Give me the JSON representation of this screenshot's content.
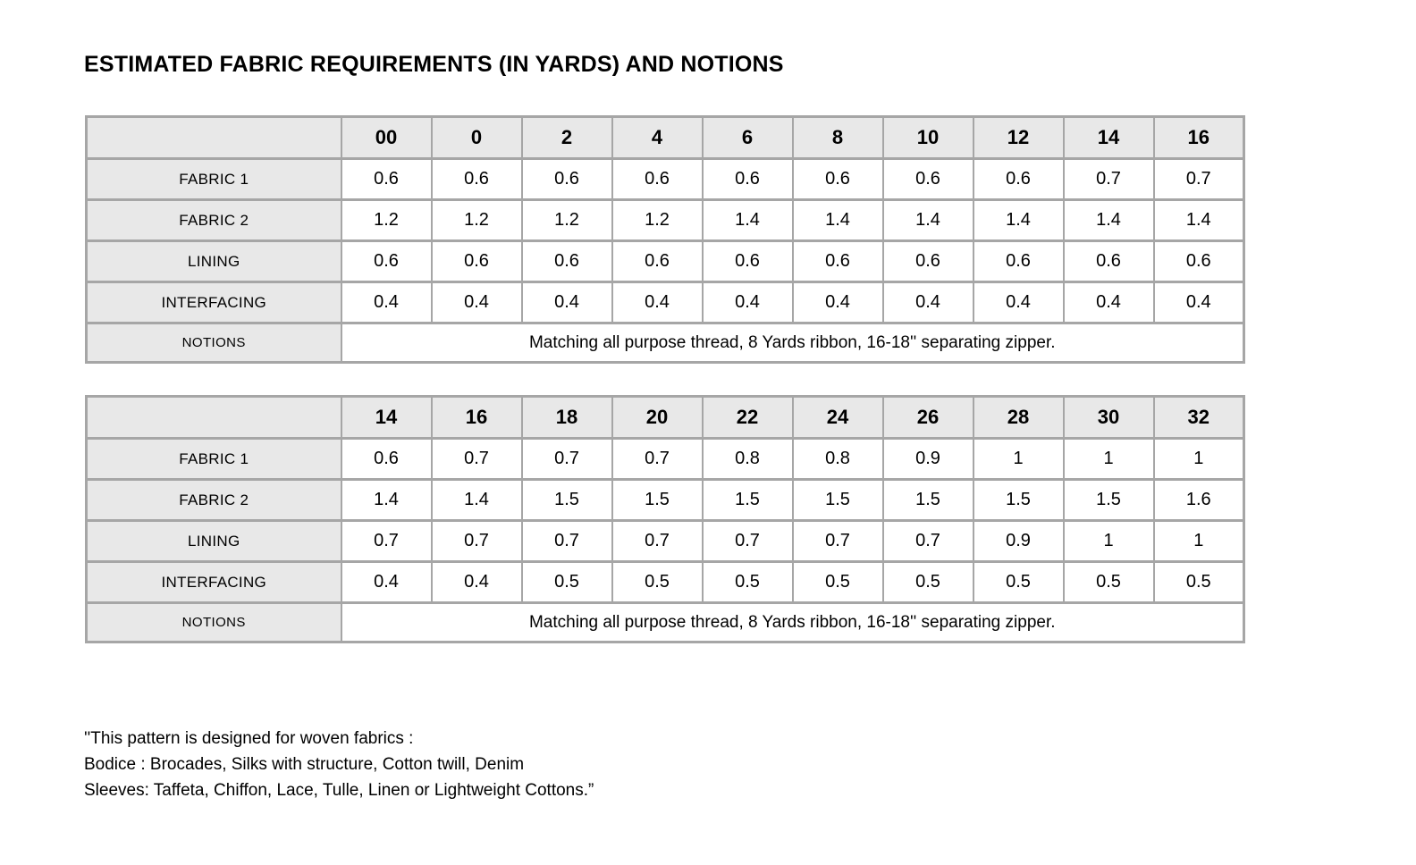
{
  "page": {
    "title": "ESTIMATED FABRIC REQUIREMENTS (IN YARDS) AND NOTIONS"
  },
  "colors": {
    "page_bg": "#ffffff",
    "shaded_cell_bg": "#e8e8e8",
    "border": "#a6a6a6",
    "text": "#000000"
  },
  "tables": [
    {
      "sizes": [
        "00",
        "0",
        "2",
        "4",
        "6",
        "8",
        "10",
        "12",
        "14",
        "16"
      ],
      "rows": [
        {
          "label": "FABRIC 1",
          "values": [
            "0.6",
            "0.6",
            "0.6",
            "0.6",
            "0.6",
            "0.6",
            "0.6",
            "0.6",
            "0.7",
            "0.7"
          ]
        },
        {
          "label": "FABRIC 2",
          "values": [
            "1.2",
            "1.2",
            "1.2",
            "1.2",
            "1.4",
            "1.4",
            "1.4",
            "1.4",
            "1.4",
            "1.4"
          ]
        },
        {
          "label": "LINING",
          "values": [
            "0.6",
            "0.6",
            "0.6",
            "0.6",
            "0.6",
            "0.6",
            "0.6",
            "0.6",
            "0.6",
            "0.6"
          ]
        },
        {
          "label": "INTERFACING",
          "values": [
            "0.4",
            "0.4",
            "0.4",
            "0.4",
            "0.4",
            "0.4",
            "0.4",
            "0.4",
            "0.4",
            "0.4"
          ]
        }
      ],
      "notions_label": "NOTIONS",
      "notions_text": "Matching all purpose thread, 8 Yards ribbon, 16-18'' separating zipper."
    },
    {
      "sizes": [
        "14",
        "16",
        "18",
        "20",
        "22",
        "24",
        "26",
        "28",
        "30",
        "32"
      ],
      "rows": [
        {
          "label": "FABRIC 1",
          "values": [
            "0.6",
            "0.7",
            "0.7",
            "0.7",
            "0.8",
            "0.8",
            "0.9",
            "1",
            "1",
            "1"
          ]
        },
        {
          "label": "FABRIC 2",
          "values": [
            "1.4",
            "1.4",
            "1.5",
            "1.5",
            "1.5",
            "1.5",
            "1.5",
            "1.5",
            "1.5",
            "1.6"
          ]
        },
        {
          "label": "LINING",
          "values": [
            "0.7",
            "0.7",
            "0.7",
            "0.7",
            "0.7",
            "0.7",
            "0.7",
            "0.9",
            "1",
            "1"
          ]
        },
        {
          "label": "INTERFACING",
          "values": [
            "0.4",
            "0.4",
            "0.5",
            "0.5",
            "0.5",
            "0.5",
            "0.5",
            "0.5",
            "0.5",
            "0.5"
          ]
        }
      ],
      "notions_label": "NOTIONS",
      "notions_text": "Matching all purpose thread, 8 Yards ribbon, 16-18'' separating zipper."
    }
  ],
  "footer": {
    "lines": [
      "''This pattern is designed for woven fabrics :",
      "Bodice : Brocades, Silks with structure, Cotton twill, Denim",
      "Sleeves: Taffeta, Chiffon, Lace, Tulle, Linen or Lightweight Cottons.”"
    ]
  }
}
